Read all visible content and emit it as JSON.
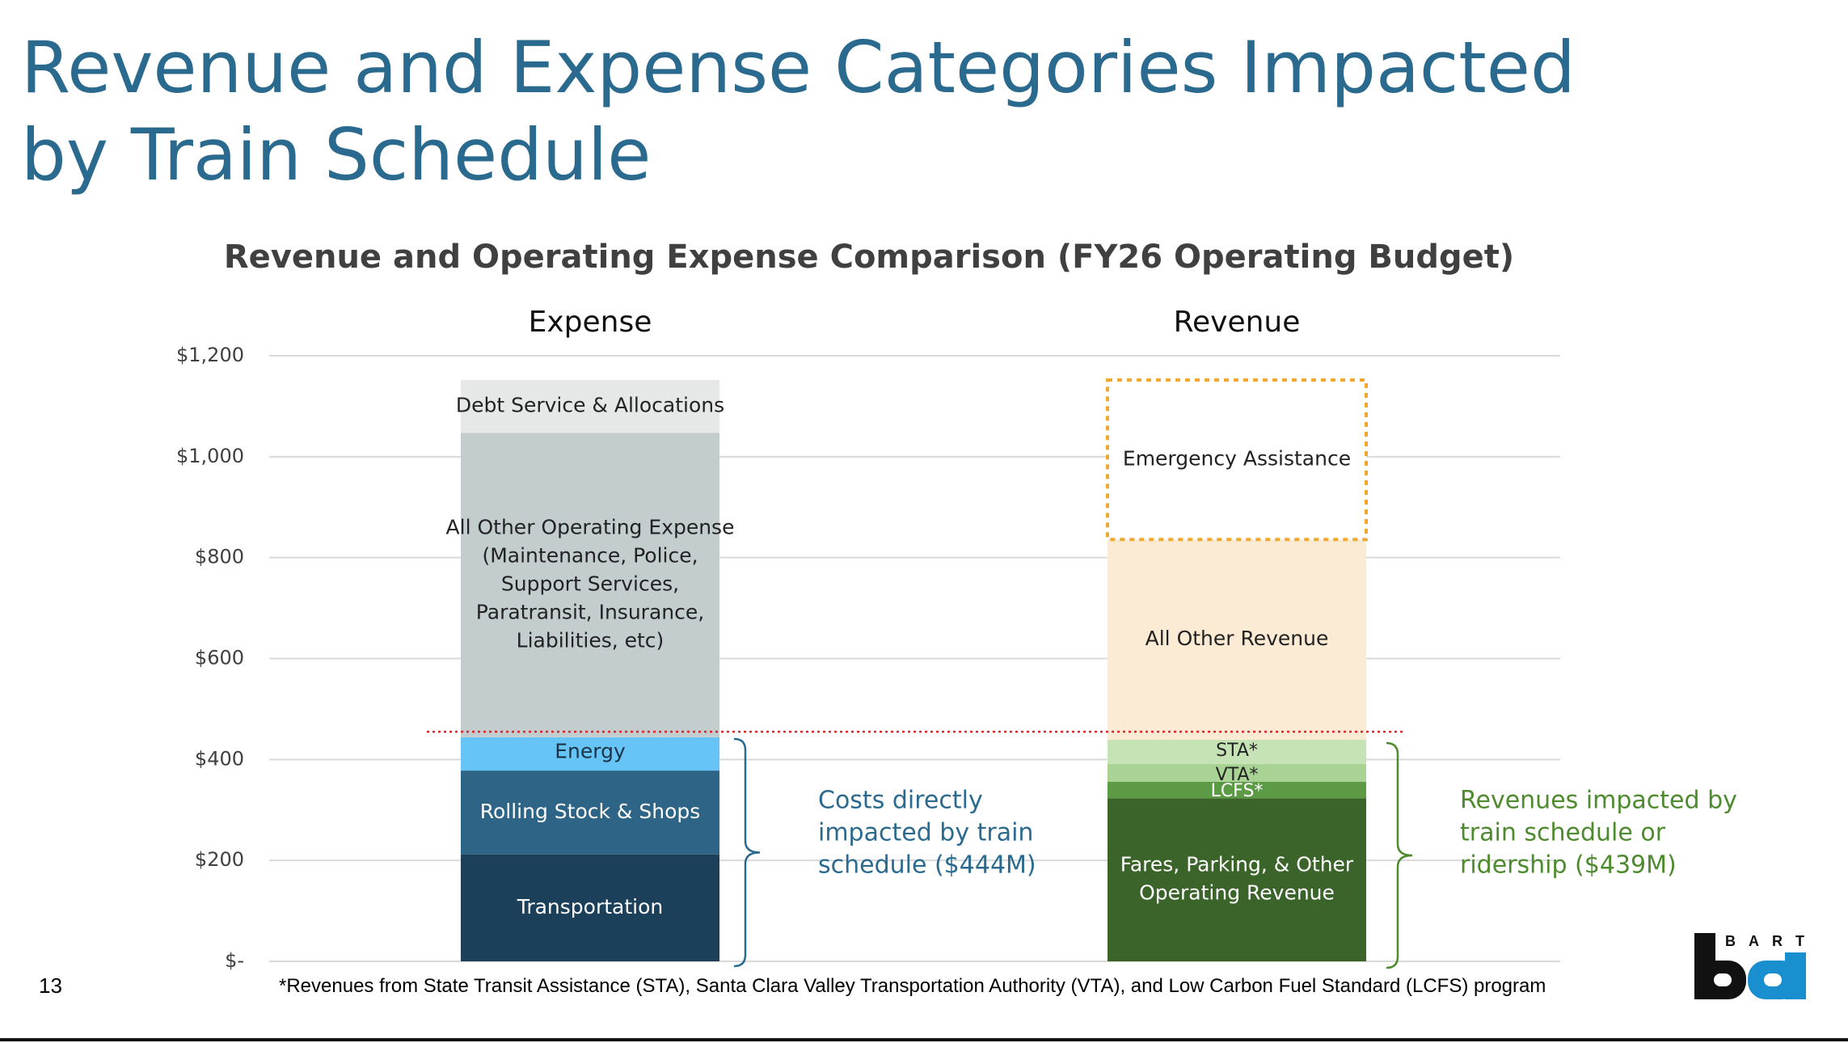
{
  "slide": {
    "title": "Revenue and Expense Categories Impacted by Train Schedule",
    "page_number": "13",
    "footnote": "*Revenues from State Transit Assistance (STA), Santa Clara Valley Transportation Authority (VTA), and Low Carbon Fuel Standard (LCFS) program",
    "logo_text": "BART",
    "logo_mark": "ba"
  },
  "colors": {
    "title": "#2b6a8f",
    "transportation": "#1c3f5a",
    "rolling_stock": "#2e6486",
    "energy": "#66c4f6",
    "all_other_expense": "#c3cdce",
    "debt_service": "#e6e8e8",
    "fares": "#3a6429",
    "lcfs": "#5c9a45",
    "vta": "#a8d394",
    "sta": "#c6e3b6",
    "all_other_revenue": "#fcebd4",
    "emergency_border": "#f0a830",
    "expense_bracket": "#2b6a8f",
    "revenue_bracket": "#4e8a2e",
    "threshold_line": "#e0242c"
  },
  "chart_data": {
    "type": "stacked-bar",
    "title": "Revenue and Operating Expense Comparison (FY26 Operating Budget)",
    "categories": [
      "Expense",
      "Revenue"
    ],
    "ylim": [
      0,
      1200
    ],
    "y_ticks": [
      0,
      200,
      400,
      600,
      800,
      1000,
      1200
    ],
    "y_tick_labels": [
      "$-",
      "$200",
      "$400",
      "$600",
      "$800",
      "$1,000",
      "$1,200"
    ],
    "grid": true,
    "threshold_value": 455,
    "stacks": [
      {
        "category": "Expense",
        "segments": [
          {
            "key": "transportation",
            "label": "Transportation",
            "value": 212,
            "label_color": "#ffffff"
          },
          {
            "key": "rolling_stock",
            "label": "Rolling Stock & Shops",
            "value": 166,
            "label_color": "#ffffff"
          },
          {
            "key": "energy",
            "label": "Energy",
            "value": 66,
            "label_color": "#1b3346"
          },
          {
            "key": "all_other_expense",
            "label": "All Other Operating Expense (Maintenance, Police, Support Services, Paratransit, Insurance, Liabilities, etc)",
            "lines": [
              "All Other Operating Expense",
              "(Maintenance, Police,",
              "Support Services,",
              "Paratransit, Insurance,",
              "Liabilities, etc)"
            ],
            "value": 603,
            "label_color": "#222222"
          },
          {
            "key": "debt_service",
            "label": "Debt Service & Allocations",
            "value": 105,
            "label_color": "#222222"
          }
        ]
      },
      {
        "category": "Revenue",
        "segments": [
          {
            "key": "fares",
            "label": "Fares, Parking, & Other Operating Revenue",
            "lines": [
              "Fares, Parking, & Other",
              "Operating Revenue"
            ],
            "value": 323,
            "label_color": "#ffffff"
          },
          {
            "key": "lcfs",
            "label": "LCFS*",
            "value": 33,
            "label_color": "#ffffff"
          },
          {
            "key": "vta",
            "label": "VTA*",
            "value": 35,
            "label_color": "#222222"
          },
          {
            "key": "sta",
            "label": "STA*",
            "value": 48,
            "label_color": "#222222"
          },
          {
            "key": "all_other_revenue",
            "label": "All Other Revenue",
            "value": 397,
            "label_color": "#222222"
          },
          {
            "key": "emergency",
            "label": "Emergency Assistance",
            "value": 316,
            "label_color": "#222222",
            "dashed": true
          }
        ]
      }
    ],
    "annotations": [
      {
        "key": "expense",
        "text": "Costs directly impacted by train schedule ($444M)",
        "lines": [
          "Costs directly",
          "impacted by train",
          "schedule ($444M)"
        ],
        "range": [
          0,
          444
        ]
      },
      {
        "key": "revenue",
        "text": "Revenues impacted by train schedule or ridership ($439M)",
        "lines": [
          "Revenues impacted by",
          "train schedule or",
          "ridership ($439M)"
        ],
        "range": [
          0,
          439
        ]
      }
    ]
  }
}
